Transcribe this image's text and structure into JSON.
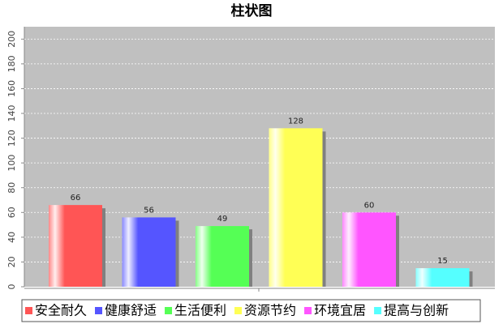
{
  "chart_data": {
    "type": "bar",
    "title": "柱状图",
    "series": [
      {
        "name": "安全耐久",
        "color": "#ff5555",
        "values": [
          66
        ]
      },
      {
        "name": "健康舒适",
        "color": "#5555ff",
        "values": [
          56
        ]
      },
      {
        "name": "生活便利",
        "color": "#55ff55",
        "values": [
          49
        ]
      },
      {
        "name": "资源节约",
        "color": "#ffff55",
        "values": [
          128
        ]
      },
      {
        "name": "环境宜居",
        "color": "#ff55ff",
        "values": [
          60
        ]
      },
      {
        "name": "提高与创新",
        "color": "#55ffff",
        "values": [
          15
        ]
      }
    ],
    "ylim": [
      0,
      210
    ],
    "yticks": [
      0,
      20,
      40,
      60,
      80,
      100,
      120,
      140,
      160,
      180,
      200
    ],
    "grid": true,
    "legend": "bottom"
  }
}
